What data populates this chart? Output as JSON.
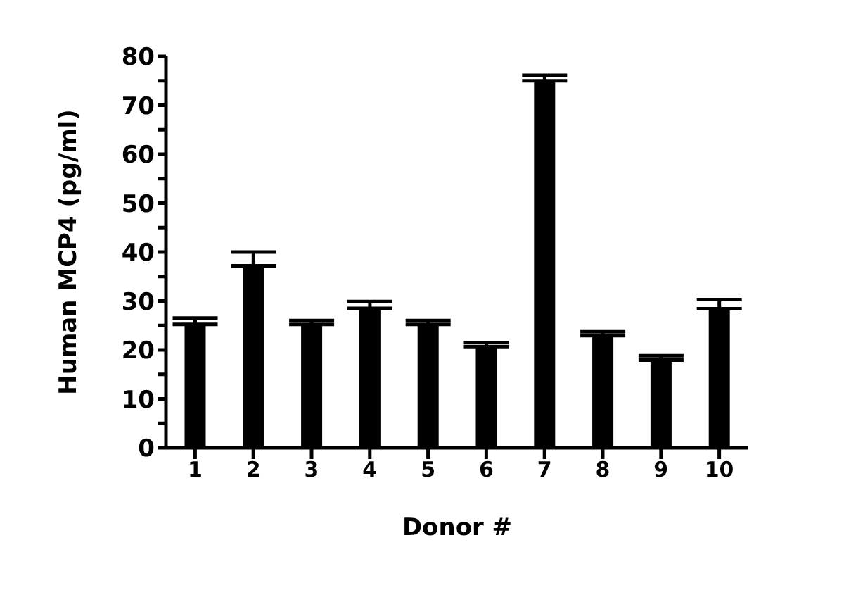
{
  "chart_data": {
    "type": "bar",
    "xlabel": "Donor #",
    "ylabel": "Human MCP4 (pg/ml)",
    "categories": [
      "1",
      "2",
      "3",
      "4",
      "5",
      "6",
      "7",
      "8",
      "9",
      "10"
    ],
    "values": [
      25.2,
      37.2,
      25.2,
      28.5,
      25.2,
      20.7,
      75.0,
      22.9,
      17.9,
      28.4
    ],
    "errors": [
      [
        25.2,
        26.5
      ],
      [
        37.2,
        40.0
      ],
      [
        25.2,
        26.0
      ],
      [
        28.5,
        29.9
      ],
      [
        25.2,
        26.0
      ],
      [
        20.7,
        21.5
      ],
      [
        75.0,
        76.1
      ],
      [
        22.9,
        23.7
      ],
      [
        17.9,
        18.8
      ],
      [
        28.4,
        30.3
      ]
    ],
    "color": "#000000",
    "ylim": [
      0,
      80
    ],
    "yticks": [
      0,
      {
        "value": 5,
        "label": null
      },
      10,
      {
        "value": 15,
        "label": null
      },
      20,
      {
        "value": 25,
        "label": null
      },
      30,
      {
        "value": 35,
        "label": null
      },
      40,
      {
        "value": 45,
        "label": null
      },
      50,
      {
        "value": 55,
        "label": null
      },
      60,
      {
        "value": 65,
        "label": null
      },
      70,
      {
        "value": 75,
        "label": null
      },
      80
    ],
    "grid": false,
    "legend": false
  }
}
